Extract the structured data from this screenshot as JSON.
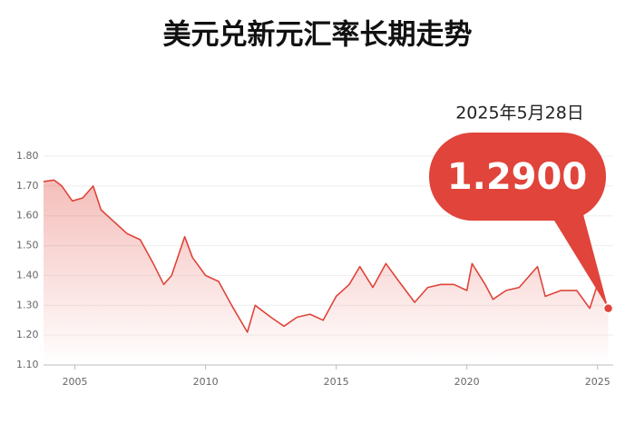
{
  "chart_data": {
    "type": "line",
    "title": "美元兑新元汇率长期走势",
    "callout": {
      "date": "2025年5月28日",
      "value": 1.29,
      "label": "1.2900"
    },
    "x": [
      2003.8,
      2004.2,
      2004.5,
      2004.9,
      2005.3,
      2005.7,
      2006.0,
      2006.5,
      2007.0,
      2007.5,
      2008.0,
      2008.4,
      2008.7,
      2009.2,
      2009.5,
      2010.0,
      2010.5,
      2011.0,
      2011.6,
      2011.9,
      2012.5,
      2013.0,
      2013.5,
      2014.0,
      2014.5,
      2015.0,
      2015.5,
      2015.9,
      2016.4,
      2016.9,
      2017.4,
      2018.0,
      2018.5,
      2019.0,
      2019.5,
      2020.0,
      2020.2,
      2020.7,
      2021.0,
      2021.5,
      2022.0,
      2022.7,
      2023.0,
      2023.6,
      2024.2,
      2024.7,
      2025.0,
      2025.41
    ],
    "series": [
      {
        "color": "#e0443a",
        "values": [
          1.715,
          1.72,
          1.7,
          1.65,
          1.66,
          1.7,
          1.62,
          1.58,
          1.54,
          1.52,
          1.44,
          1.37,
          1.4,
          1.53,
          1.46,
          1.4,
          1.38,
          1.3,
          1.21,
          1.3,
          1.26,
          1.23,
          1.26,
          1.27,
          1.25,
          1.33,
          1.37,
          1.43,
          1.36,
          1.44,
          1.38,
          1.31,
          1.36,
          1.37,
          1.37,
          1.35,
          1.44,
          1.37,
          1.32,
          1.35,
          1.36,
          1.43,
          1.33,
          1.35,
          1.35,
          1.29,
          1.37,
          1.29
        ]
      }
    ],
    "xlim": [
      2003.8,
      2025.6
    ],
    "xticks": [
      2005,
      2010,
      2015,
      2020,
      2025
    ],
    "ylim": [
      1.1,
      1.8
    ],
    "yticks": [
      {
        "value": 1.1,
        "label": "1.10"
      },
      {
        "value": 1.2,
        "label": "1.20"
      },
      {
        "value": 1.3,
        "label": "1.30"
      },
      {
        "value": 1.4,
        "label": "1.40"
      },
      {
        "value": 1.5,
        "label": "1.50"
      },
      {
        "value": 1.6,
        "label": "1.60"
      },
      {
        "value": 1.7,
        "label": "1.70"
      },
      {
        "value": 1.8,
        "label": "1.80"
      }
    ],
    "grid": true
  }
}
